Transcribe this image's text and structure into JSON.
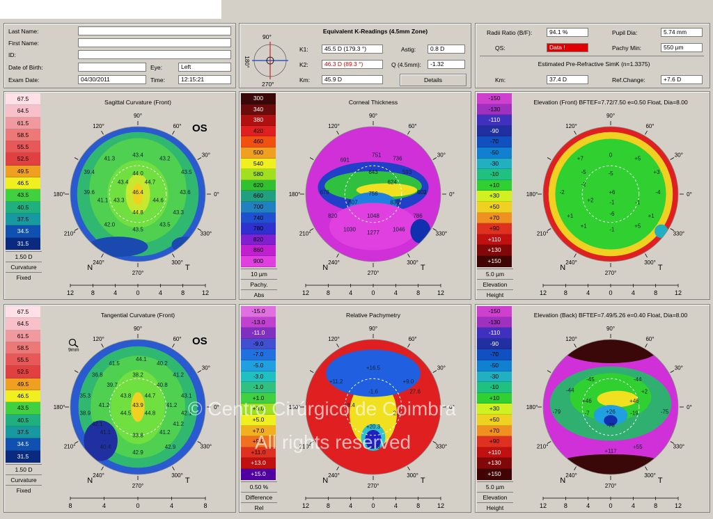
{
  "patient": {
    "last_name_label": "Last Name:",
    "first_name_label": "First Name:",
    "id_label": "ID:",
    "dob_label": "Date of Birth:",
    "eye_label": "Eye:",
    "eye_value": "Left",
    "exam_date_label": "Exam Date:",
    "exam_date_value": "04/30/2011",
    "time_label": "Time:",
    "time_value": "12:15:21"
  },
  "kread": {
    "title": "Equivalent K-Readings (4.5mm Zone)",
    "k1_label": "K1:",
    "k1_value": "45.5 D  (179.3 °)",
    "k2_label": "K2:",
    "k2_value": "46.3 D  (89.3 °)",
    "km_label": "Km:",
    "km_value": "45.9 D",
    "astig_label": "Astig:",
    "astig_value": "0.8 D",
    "q_label": "Q (4.5mm):",
    "q_value": "-1.32",
    "details_label": "Details",
    "mini_top": "90°",
    "mini_left": "180°",
    "mini_bottom": "270°"
  },
  "info": {
    "radii_label": "Radii Ratio (B/F):",
    "radii_value": "94.1 %",
    "qs_label": "QS:",
    "qs_value": "Data !",
    "pupil_label": "Pupil Dia:",
    "pupil_value": "5.74 mm",
    "pachy_label": "Pachy Min:",
    "pachy_value": "550 µm",
    "simk_title": "Estimated Pre-Refractive SimK (n=1.3375)",
    "km_label": "Km:",
    "km_value": "37.4 D",
    "ref_label": "Ref.Change:",
    "ref_value": "+7.6 D"
  },
  "colors": {
    "panel_bg": "#d4d0c8",
    "qs_warning": "#e00000"
  },
  "maps": [
    {
      "title": "Sagittal Curvature (Front)",
      "eye": "OS",
      "scale_values": [
        "67.5",
        "64.5",
        "61.5",
        "58.5",
        "55.5",
        "52.5",
        "49.5",
        "46.5",
        "43.5",
        "40.5",
        "37.5",
        "34.5",
        "31.5"
      ],
      "step": "1.50 D",
      "foot1": "Curvature",
      "foot2": "Fixed",
      "axis": [
        "12",
        "8",
        "4",
        "0",
        "4",
        "8",
        "12"
      ],
      "values": [
        "43.4",
        "41.3",
        "43.2",
        "39.4",
        "44.0",
        "43.5",
        "44.7",
        "39.6",
        "46.4",
        "43.6",
        "41.1",
        "43.3",
        "44.6",
        "44.8",
        "43.3",
        "42.0",
        "43.5",
        "43.5",
        "43.4"
      ]
    },
    {
      "title": "Corneal Thickness",
      "eye": "",
      "scale_values": [
        "300",
        "340",
        "380",
        "420",
        "460",
        "500",
        "540",
        "580",
        "620",
        "660",
        "700",
        "740",
        "780",
        "820",
        "860",
        "900"
      ],
      "step": "10 µm",
      "foot1": "Pachy.",
      "foot2": "Abs",
      "axis": [
        "12",
        "8",
        "4",
        "0",
        "4",
        "8",
        "12"
      ],
      "values": [
        "751",
        "736",
        "691",
        "643",
        "593",
        "602",
        "624",
        "603",
        "678",
        "756",
        "807",
        "830",
        "820",
        "1048",
        "786",
        "1030",
        "1277",
        "1046"
      ]
    },
    {
      "title": "Elevation (Front)  BFTEF=7.72/7.50 e=0.50 Float, Dia=8.00",
      "eye": "",
      "scale_values": [
        "-150",
        "-130",
        "-110",
        "-90",
        "-70",
        "-50",
        "-30",
        "-10",
        "+10",
        "+30",
        "+50",
        "+70",
        "+90",
        "+110",
        "+130",
        "+150"
      ],
      "step": "5.0 µm",
      "foot1": "Elevation",
      "foot2": "Height",
      "axis": [
        "12",
        "8",
        "4",
        "0",
        "4",
        "8",
        "12"
      ],
      "values": [
        "+7",
        "0",
        "+5",
        "-5",
        "+3",
        "-5",
        "-2",
        "+6",
        "-4",
        "-2",
        "+2",
        "-1",
        "-1",
        "-6",
        "+1",
        "+1",
        "+1",
        "+5",
        "-1"
      ]
    },
    {
      "title": "Tangential Curvature (Front)",
      "eye": "OS",
      "scale_values": [
        "67.5",
        "64.5",
        "61.5",
        "58.5",
        "55.5",
        "52.5",
        "49.5",
        "46.5",
        "43.5",
        "40.5",
        "37.5",
        "34.5",
        "31.5"
      ],
      "step": "1.50 D",
      "foot1": "Curvature",
      "foot2": "Fixed",
      "axis": [
        "8",
        "4",
        "0",
        "4",
        "8"
      ],
      "zoom_label": "9mm",
      "values": [
        "41.5",
        "44.1",
        "40.2",
        "36.8",
        "38.2",
        "41.2",
        "39.7",
        "40.8",
        "43.8",
        "44.7",
        "43.1",
        "35.3",
        "41.2",
        "43.9",
        "41.2",
        "38.9",
        "44.5",
        "44.8",
        "42.1",
        "42.1",
        "41.2",
        "41.1",
        "33.8",
        "41.2",
        "40.4",
        "42.9",
        "42.9"
      ]
    },
    {
      "title": "Relative Pachymetry",
      "eye": "",
      "scale_values": [
        "-15.0",
        "-13.0",
        "-11.0",
        "-9.0",
        "-7.0",
        "-5.0",
        "-3.0",
        "-1.0",
        "+1.0",
        "+3.0",
        "+5.0",
        "+7.0",
        "+9.0",
        "+11.0",
        "+13.0",
        "+15.0"
      ],
      "step": "0.50 %",
      "foot1": "Difference",
      "foot2": "Rel",
      "axis": [
        "12",
        "8",
        "4",
        "0",
        "4",
        "8",
        "12"
      ],
      "values": [
        "+16.5",
        "+11.2",
        "+9.0",
        "-1.6",
        "27.6",
        "18.4",
        "2.2",
        "+20.3",
        "+14.8"
      ]
    },
    {
      "title": "Elevation (Back)  BFTEF=7.49/5.26 e=0.40 Float, Dia=8.00",
      "eye": "",
      "scale_values": [
        "-150",
        "-130",
        "-110",
        "-90",
        "-70",
        "-50",
        "-30",
        "-10",
        "+10",
        "+30",
        "+50",
        "+70",
        "+90",
        "+110",
        "+130",
        "+150"
      ],
      "step": "5.0 µm",
      "foot1": "Elevation",
      "foot2": "Height",
      "axis": [
        "12",
        "8",
        "4",
        "0",
        "4",
        "8",
        "12"
      ],
      "values": [
        "-45",
        "-44",
        "-44",
        "+2",
        "+46",
        "+46",
        "-7",
        "+26",
        "-19",
        "-78",
        "-79",
        "-75",
        "+117",
        "+55"
      ]
    }
  ],
  "compass": {
    "deg90": "90°",
    "deg60": "60°",
    "deg30": "30°",
    "deg0": "0°",
    "deg330": "330°",
    "deg300": "300°",
    "deg270": "270°",
    "deg240": "240°",
    "deg210": "210°",
    "deg180": "180°",
    "deg150": "150°",
    "deg120": "120°",
    "nasal": "N",
    "temporal": "T"
  },
  "watermark": {
    "line1": "© Centro Cirúrgico de Coimbra",
    "line2": "All rights reserved"
  }
}
